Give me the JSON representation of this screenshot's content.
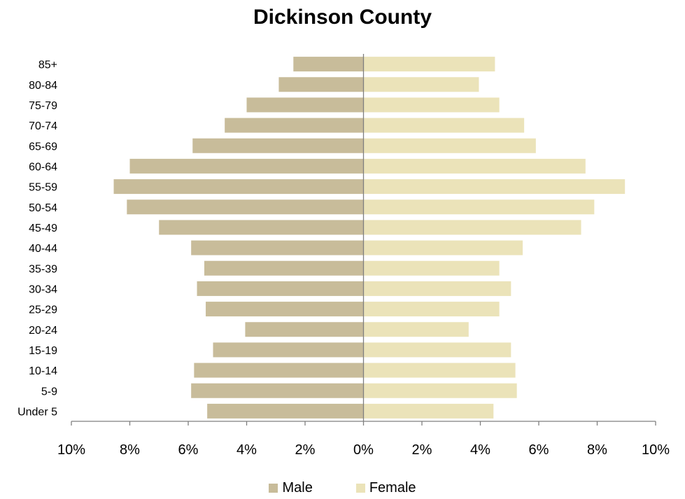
{
  "chart_data": {
    "type": "bar",
    "orientation": "horizontal",
    "title": "Dickinson County",
    "categories": [
      "Under 5",
      "5-9",
      "10-14",
      "15-19",
      "20-24",
      "25-29",
      "30-34",
      "35-39",
      "40-44",
      "45-49",
      "50-54",
      "55-59",
      "60-64",
      "65-69",
      "70-74",
      "75-79",
      "80-84",
      "85+"
    ],
    "series": [
      {
        "name": "Male",
        "color": "#c8bc9a",
        "values": [
          5.35,
          5.9,
          5.8,
          5.15,
          4.05,
          5.4,
          5.7,
          5.45,
          5.9,
          7.0,
          8.1,
          8.55,
          8.0,
          5.85,
          4.75,
          4.0,
          2.9,
          2.4
        ]
      },
      {
        "name": "Female",
        "color": "#ebe3b9",
        "values": [
          4.45,
          5.25,
          5.2,
          5.05,
          3.6,
          4.65,
          5.05,
          4.65,
          5.45,
          7.45,
          7.9,
          8.95,
          7.6,
          5.9,
          5.5,
          4.65,
          3.95,
          4.5
        ]
      }
    ],
    "xlim": [
      -10,
      10
    ],
    "xticks": [
      "10%",
      "8%",
      "6%",
      "4%",
      "2%",
      "0%",
      "2%",
      "4%",
      "6%",
      "8%",
      "10%"
    ],
    "grid": false,
    "legend_position": "bottom"
  }
}
